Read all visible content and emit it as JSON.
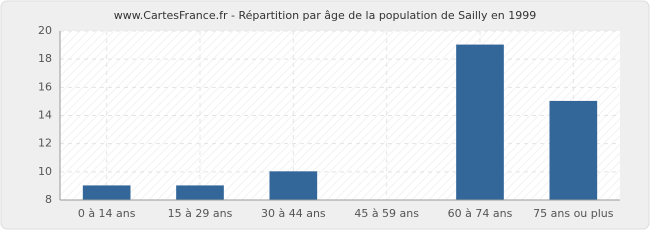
{
  "chart_data": {
    "type": "bar",
    "title": "www.CartesFrance.fr - Répartition par âge de la population de Sailly en 1999",
    "categories": [
      "0 à 14 ans",
      "15 à 29 ans",
      "30 à 44 ans",
      "45 à 59 ans",
      "60 à 74 ans",
      "75 ans ou plus"
    ],
    "values": [
      9,
      9,
      10,
      8,
      19,
      15
    ],
    "color": "#336699",
    "ylim": [
      8,
      20
    ],
    "yticks": [
      8,
      10,
      12,
      14,
      16,
      18,
      20
    ],
    "grid": true
  }
}
